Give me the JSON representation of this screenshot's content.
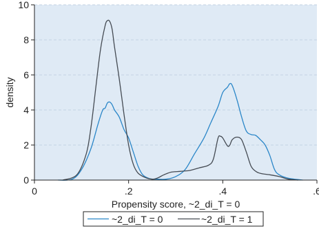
{
  "chart_data": {
    "type": "line",
    "title": "",
    "xlabel": "Propensity score, ~2_di_T = 0",
    "ylabel": "density",
    "xlim": [
      0,
      0.6
    ],
    "ylim": [
      0,
      10
    ],
    "x_ticks": [
      0,
      0.2,
      0.4,
      0.6
    ],
    "x_tick_labels": [
      "0",
      ".2",
      ".4",
      ".6"
    ],
    "y_ticks": [
      0,
      2,
      4,
      6,
      8,
      10
    ],
    "y_tick_labels": [
      "0",
      "2",
      "4",
      "6",
      "8",
      "10"
    ],
    "grid": true,
    "legend_position": "bottom",
    "plot_background": "#dfeaf5",
    "series": [
      {
        "name": "~2_di_T = 0",
        "color": "#2a86c8",
        "points": [
          [
            0.05,
            0
          ],
          [
            0.08,
            0.05
          ],
          [
            0.1,
            0.6
          ],
          [
            0.12,
            1.8
          ],
          [
            0.135,
            3.2
          ],
          [
            0.145,
            4.0
          ],
          [
            0.15,
            4.1
          ],
          [
            0.155,
            4.4
          ],
          [
            0.16,
            4.45
          ],
          [
            0.165,
            4.3
          ],
          [
            0.17,
            4.0
          ],
          [
            0.18,
            3.6
          ],
          [
            0.19,
            2.9
          ],
          [
            0.2,
            2.4
          ],
          [
            0.21,
            1.6
          ],
          [
            0.22,
            0.8
          ],
          [
            0.23,
            0.3
          ],
          [
            0.245,
            0.08
          ],
          [
            0.26,
            0.05
          ],
          [
            0.28,
            0.05
          ],
          [
            0.3,
            0.2
          ],
          [
            0.32,
            0.6
          ],
          [
            0.34,
            1.5
          ],
          [
            0.36,
            2.4
          ],
          [
            0.375,
            3.3
          ],
          [
            0.39,
            4.2
          ],
          [
            0.4,
            5.0
          ],
          [
            0.41,
            5.3
          ],
          [
            0.415,
            5.5
          ],
          [
            0.42,
            5.4
          ],
          [
            0.43,
            4.6
          ],
          [
            0.44,
            3.6
          ],
          [
            0.45,
            2.8
          ],
          [
            0.46,
            2.6
          ],
          [
            0.47,
            2.55
          ],
          [
            0.48,
            2.3
          ],
          [
            0.49,
            2.0
          ],
          [
            0.5,
            1.4
          ],
          [
            0.51,
            0.6
          ],
          [
            0.52,
            0.3
          ],
          [
            0.54,
            0.1
          ],
          [
            0.57,
            0
          ]
        ]
      },
      {
        "name": "~2_di_T = 1",
        "color": "#444a52",
        "points": [
          [
            0.06,
            0
          ],
          [
            0.09,
            0.3
          ],
          [
            0.11,
            1.5
          ],
          [
            0.12,
            3.0
          ],
          [
            0.13,
            5.2
          ],
          [
            0.14,
            7.4
          ],
          [
            0.15,
            8.8
          ],
          [
            0.155,
            9.1
          ],
          [
            0.16,
            9.05
          ],
          [
            0.165,
            8.6
          ],
          [
            0.17,
            7.6
          ],
          [
            0.18,
            5.8
          ],
          [
            0.19,
            3.8
          ],
          [
            0.2,
            2.0
          ],
          [
            0.21,
            0.9
          ],
          [
            0.22,
            0.4
          ],
          [
            0.235,
            0.15
          ],
          [
            0.25,
            0.05
          ],
          [
            0.26,
            0.1
          ],
          [
            0.275,
            0.3
          ],
          [
            0.29,
            0.45
          ],
          [
            0.31,
            0.5
          ],
          [
            0.33,
            0.55
          ],
          [
            0.35,
            0.7
          ],
          [
            0.37,
            0.85
          ],
          [
            0.38,
            1.2
          ],
          [
            0.39,
            2.4
          ],
          [
            0.395,
            2.5
          ],
          [
            0.4,
            2.4
          ],
          [
            0.41,
            1.95
          ],
          [
            0.415,
            2.0
          ],
          [
            0.42,
            2.3
          ],
          [
            0.43,
            2.45
          ],
          [
            0.44,
            2.3
          ],
          [
            0.45,
            1.6
          ],
          [
            0.46,
            0.8
          ],
          [
            0.47,
            0.5
          ],
          [
            0.48,
            0.38
          ],
          [
            0.5,
            0.3
          ],
          [
            0.52,
            0.2
          ],
          [
            0.54,
            0.05
          ],
          [
            0.56,
            0
          ]
        ]
      }
    ]
  }
}
